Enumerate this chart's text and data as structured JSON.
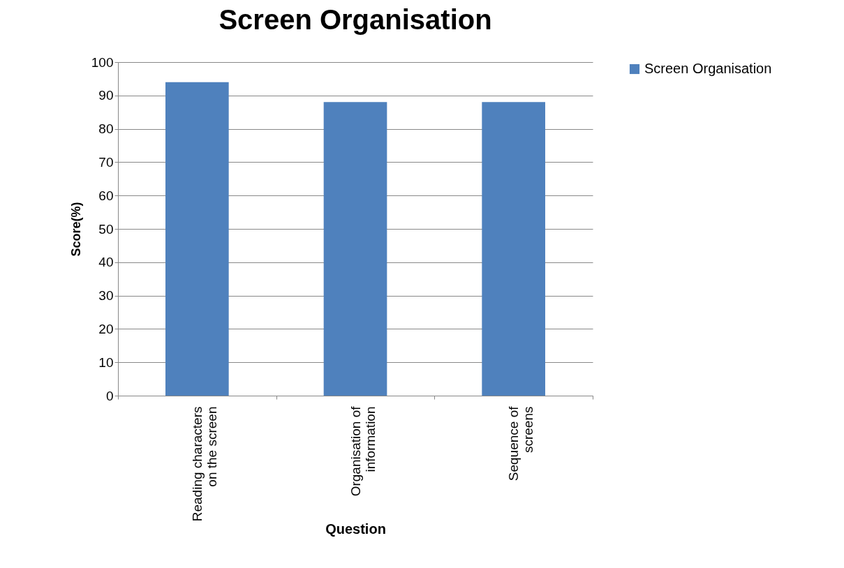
{
  "chart_data": {
    "type": "bar",
    "title": "Screen Organisation",
    "xlabel": "Question",
    "ylabel": "Score(%)",
    "categories": [
      "Reading characters on the screen",
      "Organisation of information",
      "Sequence of screens"
    ],
    "series": [
      {
        "name": "Screen Organisation",
        "color": "#4f81bd",
        "values": [
          94,
          88,
          88
        ]
      }
    ],
    "ylim": [
      0,
      100
    ],
    "yticks": [
      0,
      10,
      20,
      30,
      40,
      50,
      60,
      70,
      80,
      90,
      100
    ],
    "grid": "y",
    "legend": "right"
  }
}
